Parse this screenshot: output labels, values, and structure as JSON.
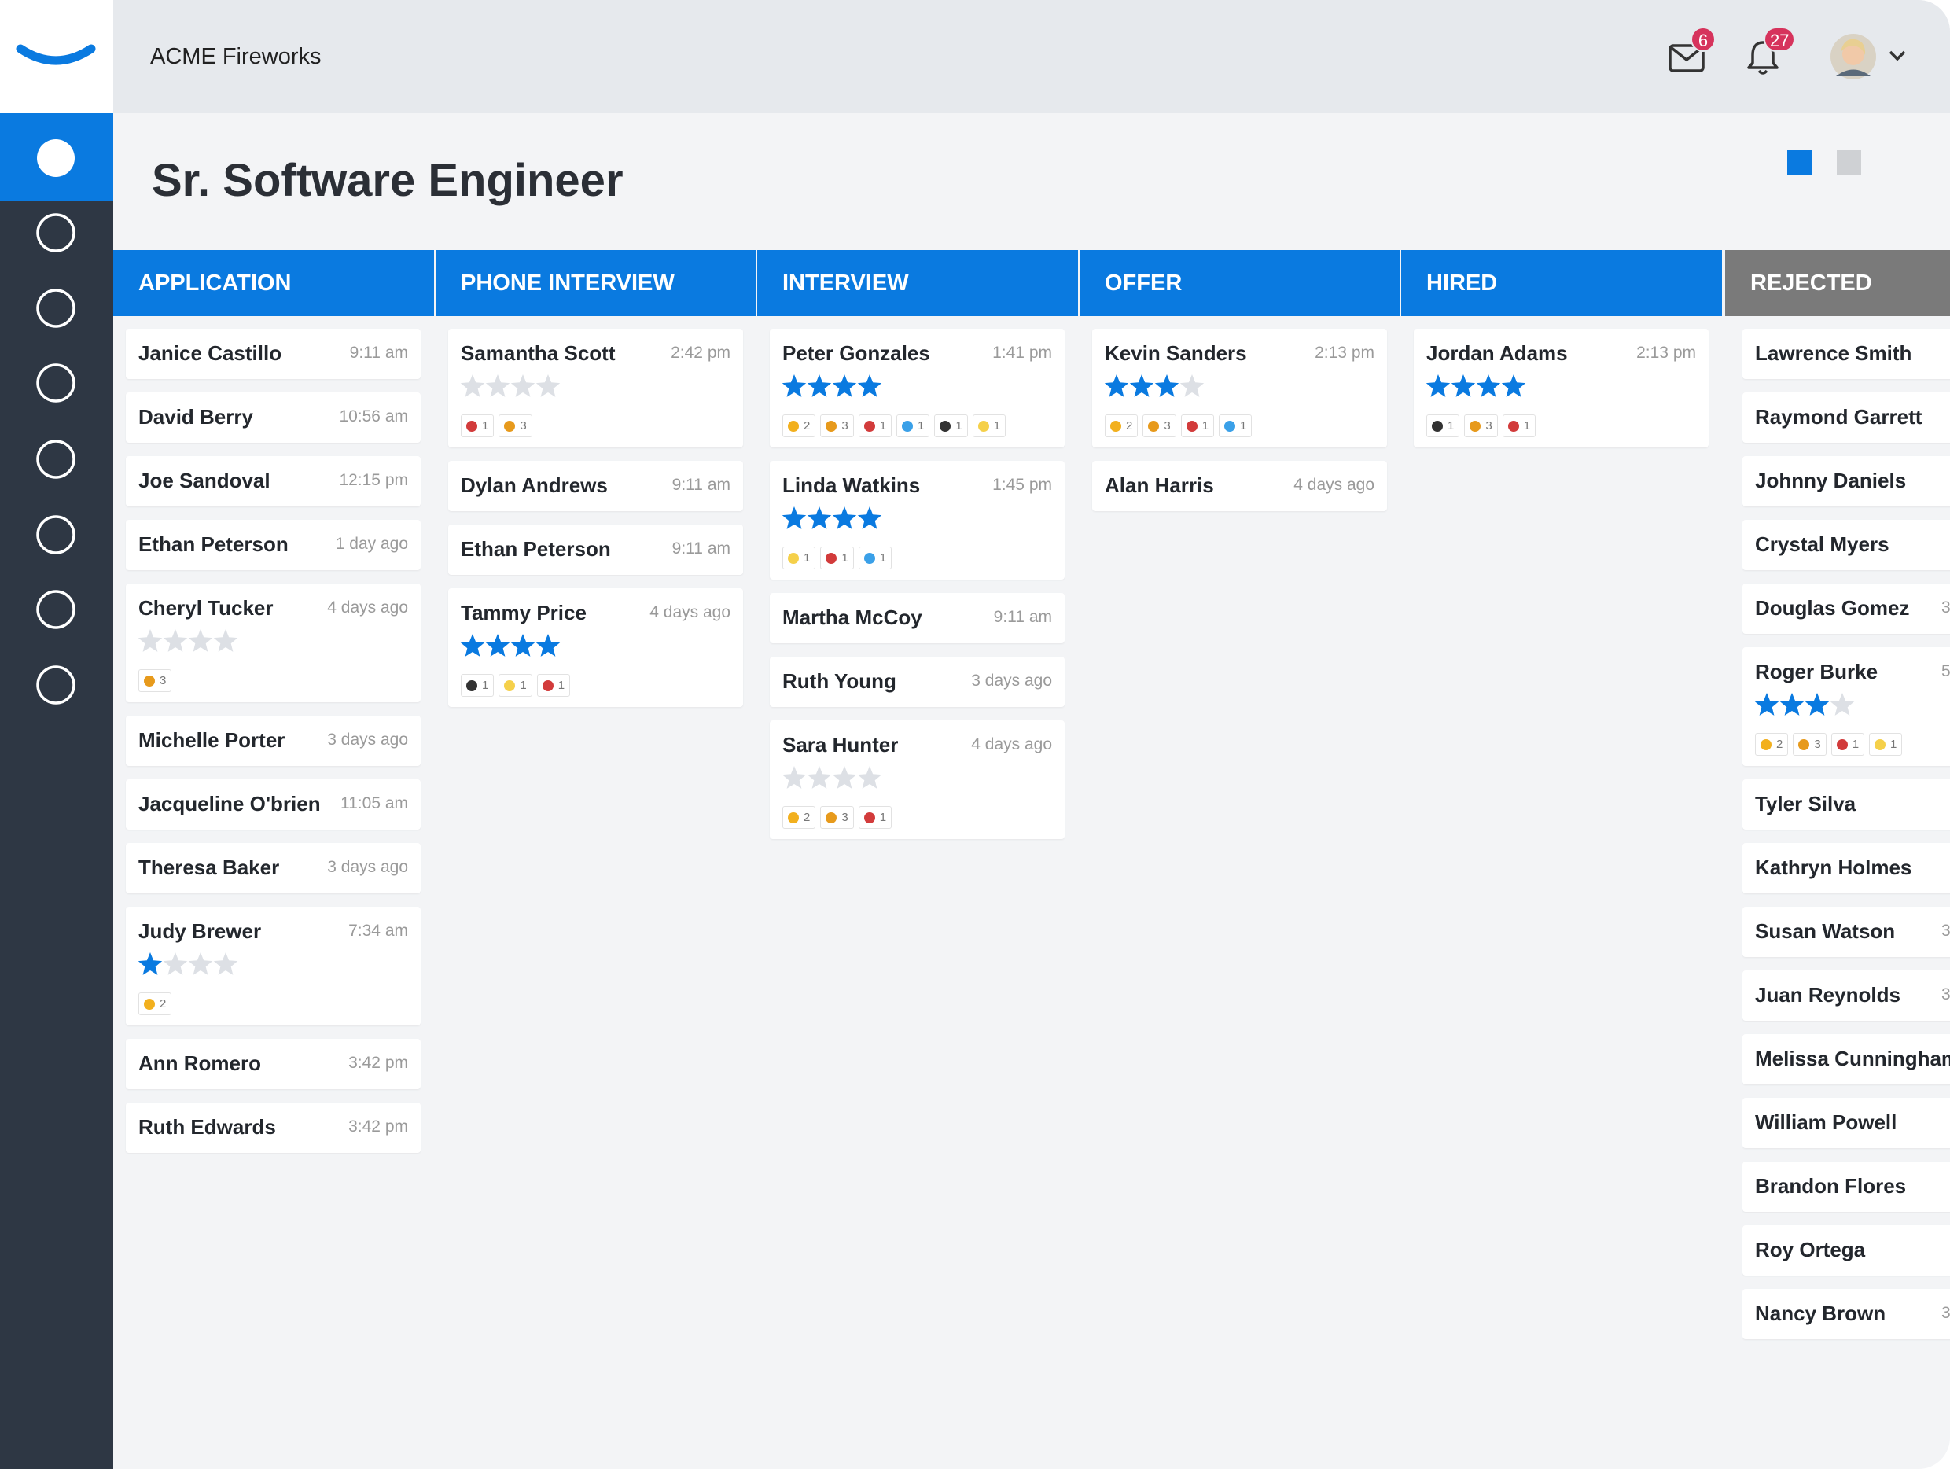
{
  "header": {
    "company": "ACME Fireworks",
    "mail_count": 6,
    "notification_count": 27
  },
  "page_title": "Sr. Software Engineer",
  "columns": [
    {
      "title": "APPLICATION",
      "color": "#0a7ae0",
      "cards": [
        {
          "name": "Janice Castillo",
          "time": "9:11 am"
        },
        {
          "name": "David Berry",
          "time": "10:56 am"
        },
        {
          "name": "Joe Sandoval",
          "time": "12:15 pm"
        },
        {
          "name": "Ethan Peterson",
          "time": "1 day ago"
        },
        {
          "name": "Cheryl Tucker",
          "time": "4 days ago",
          "rating": 0,
          "reactions": [
            {
              "color": "#e79a1c",
              "count": 3
            }
          ]
        },
        {
          "name": "Michelle Porter",
          "time": "3 days ago"
        },
        {
          "name": "Jacqueline O'brien",
          "time": "11:05 am"
        },
        {
          "name": "Theresa Baker",
          "time": "3 days ago"
        },
        {
          "name": "Judy Brewer",
          "time": "7:34 am",
          "rating": 1,
          "reactions": [
            {
              "color": "#f2b01e",
              "count": 2
            }
          ]
        },
        {
          "name": "Ann Romero",
          "time": "3:42 pm"
        },
        {
          "name": "Ruth Edwards",
          "time": "3:42 pm"
        }
      ]
    },
    {
      "title": "PHONE INTERVIEW",
      "color": "#0a7ae0",
      "cards": [
        {
          "name": "Samantha Scott",
          "time": "2:42 pm",
          "rating": 0,
          "reactions": [
            {
              "color": "#d23b3b",
              "count": 1
            },
            {
              "color": "#e79a1c",
              "count": 3
            }
          ]
        },
        {
          "name": "Dylan Andrews",
          "time": "9:11 am"
        },
        {
          "name": "Ethan Peterson",
          "time": "9:11 am"
        },
        {
          "name": "Tammy Price",
          "time": "4 days ago",
          "rating": 4,
          "reactions": [
            {
              "color": "#333333",
              "count": 1
            },
            {
              "color": "#f5d04a",
              "count": 1
            },
            {
              "color": "#d23b3b",
              "count": 1
            }
          ]
        }
      ]
    },
    {
      "title": "INTERVIEW",
      "color": "#0a7ae0",
      "cards": [
        {
          "name": "Peter Gonzales",
          "time": "1:41 pm",
          "rating": 4,
          "reactions": [
            {
              "color": "#f2b01e",
              "count": 2
            },
            {
              "color": "#e79a1c",
              "count": 3
            },
            {
              "color": "#d23b3b",
              "count": 1
            },
            {
              "color": "#3aa0e8",
              "count": 1
            },
            {
              "color": "#333333",
              "count": 1
            },
            {
              "color": "#f5d04a",
              "count": 1
            }
          ]
        },
        {
          "name": "Linda Watkins",
          "time": "1:45 pm",
          "rating": 4,
          "reactions": [
            {
              "color": "#f5d04a",
              "count": 1
            },
            {
              "color": "#d23b3b",
              "count": 1
            },
            {
              "color": "#3aa0e8",
              "count": 1
            }
          ]
        },
        {
          "name": "Martha McCoy",
          "time": "9:11 am"
        },
        {
          "name": "Ruth Young",
          "time": "3 days ago"
        },
        {
          "name": "Sara Hunter",
          "time": "4 days ago",
          "rating": 0,
          "reactions": [
            {
              "color": "#f2b01e",
              "count": 2
            },
            {
              "color": "#e79a1c",
              "count": 3
            },
            {
              "color": "#d23b3b",
              "count": 1
            }
          ]
        }
      ]
    },
    {
      "title": "OFFER",
      "color": "#0a7ae0",
      "cards": [
        {
          "name": "Kevin Sanders",
          "time": "2:13 pm",
          "rating": 3,
          "reactions": [
            {
              "color": "#f2b01e",
              "count": 2
            },
            {
              "color": "#e79a1c",
              "count": 3
            },
            {
              "color": "#d23b3b",
              "count": 1
            },
            {
              "color": "#3aa0e8",
              "count": 1
            }
          ]
        },
        {
          "name": "Alan Harris",
          "time": "4 days ago"
        }
      ]
    },
    {
      "title": "HIRED",
      "color": "#0a7ae0",
      "cards": [
        {
          "name": "Jordan Adams",
          "time": "2:13 pm",
          "rating": 4,
          "reactions": [
            {
              "color": "#333333",
              "count": 1
            },
            {
              "color": "#e79a1c",
              "count": 3
            },
            {
              "color": "#d23b3b",
              "count": 1
            }
          ]
        }
      ]
    },
    {
      "title": "REJECTED",
      "color": "#7a7a7a",
      "cards": [
        {
          "name": "Lawrence Smith"
        },
        {
          "name": "Raymond Garrett"
        },
        {
          "name": "Johnny Daniels"
        },
        {
          "name": "Crystal Myers"
        },
        {
          "name": "Douglas Gomez",
          "time": "3"
        },
        {
          "name": "Roger Burke",
          "time": "5",
          "rating": 3,
          "reactions": [
            {
              "color": "#f2b01e",
              "count": 2
            },
            {
              "color": "#e79a1c",
              "count": 3
            },
            {
              "color": "#d23b3b",
              "count": 1
            },
            {
              "color": "#f5d04a",
              "count": 1
            }
          ]
        },
        {
          "name": "Tyler Silva"
        },
        {
          "name": "Kathryn Holmes"
        },
        {
          "name": "Susan Watson",
          "time": "3"
        },
        {
          "name": "Juan Reynolds",
          "time": "3"
        },
        {
          "name": "Melissa Cunningham"
        },
        {
          "name": "William Powell"
        },
        {
          "name": "Brandon Flores"
        },
        {
          "name": "Roy Ortega"
        },
        {
          "name": "Nancy Brown",
          "time": "3"
        }
      ]
    }
  ]
}
